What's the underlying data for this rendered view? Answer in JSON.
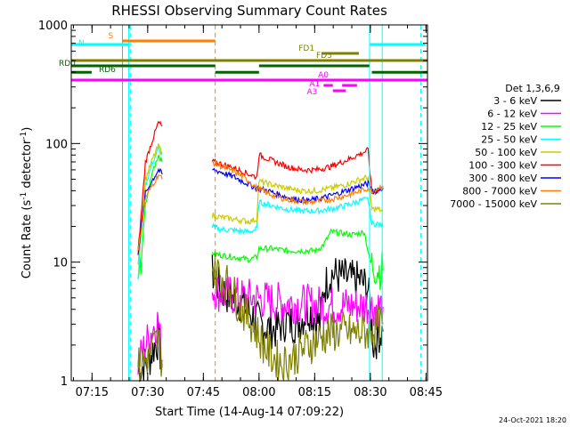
{
  "chart_data": {
    "type": "line",
    "title": "RHESSI Observing Summary Count Rates",
    "xlabel": "Start Time (14-Aug-14 07:09:22)",
    "ylabel": "Count Rate (s⁻¹ detector⁻¹)",
    "ylabel_main": "Count Rate (s",
    "ylabel_mid": " detector",
    "ylabel_end": ")",
    "ylabel_sup": "-1",
    "yscale": "log",
    "ylim": [
      1,
      1000
    ],
    "xlim_minutes": [
      0,
      96
    ],
    "x_ticks": [
      {
        "label": "07:15",
        "minute": 5.6
      },
      {
        "label": "07:30",
        "minute": 20.6
      },
      {
        "label": "07:45",
        "minute": 35.6
      },
      {
        "label": "08:00",
        "minute": 50.6
      },
      {
        "label": "08:15",
        "minute": 65.6
      },
      {
        "label": "08:30",
        "minute": 80.6
      },
      {
        "label": "08:45",
        "minute": 95.6
      }
    ],
    "y_ticks": [
      {
        "label": "1",
        "value": 1
      },
      {
        "label": "10",
        "value": 10
      },
      {
        "label": "100",
        "value": 100
      },
      {
        "label": "1000",
        "value": 1000
      }
    ],
    "legend_title": "Det 1,3,6,9",
    "series": [
      {
        "name": "3 - 6 keV",
        "color": "#000000",
        "values": [
          [
            18,
            1.2
          ],
          [
            21,
            1.5
          ],
          [
            22.5,
            2
          ],
          [
            23.5,
            2.2
          ],
          [
            24.5,
            1.3
          ],
          [
            38,
            8
          ],
          [
            40,
            6
          ],
          [
            43,
            5
          ],
          [
            46,
            4.5
          ],
          [
            49,
            3.5
          ],
          [
            51,
            3
          ],
          [
            53,
            2.8
          ],
          [
            55,
            2.7
          ],
          [
            58,
            3.2
          ],
          [
            61,
            3
          ],
          [
            64,
            4
          ],
          [
            67,
            3
          ],
          [
            68,
            6
          ],
          [
            70,
            8
          ],
          [
            73,
            7.5
          ],
          [
            76,
            7
          ],
          [
            78,
            7
          ],
          [
            80,
            6
          ],
          [
            81.5,
            2
          ],
          [
            83,
            2.5
          ],
          [
            84,
            2.6
          ]
        ]
      },
      {
        "name": "6 - 12 keV",
        "color": "#ff00ff",
        "values": [
          [
            18,
            1.4
          ],
          [
            20,
            2
          ],
          [
            22,
            2.8
          ],
          [
            23.5,
            3.2
          ],
          [
            24.5,
            1.5
          ],
          [
            38,
            6
          ],
          [
            40,
            5.5
          ],
          [
            43,
            5.2
          ],
          [
            46,
            5
          ],
          [
            49,
            5
          ],
          [
            52,
            4.8
          ],
          [
            56,
            4.6
          ],
          [
            60,
            4.5
          ],
          [
            64,
            4.4
          ],
          [
            68,
            4.3
          ],
          [
            72,
            4.3
          ],
          [
            76,
            4.3
          ],
          [
            80,
            4.3
          ],
          [
            82,
            4.2
          ],
          [
            84,
            4.2
          ]
        ]
      },
      {
        "name": "12 - 25 keV",
        "color": "#00ff00",
        "values": [
          [
            18,
            5
          ],
          [
            20,
            30
          ],
          [
            22,
            60
          ],
          [
            23.5,
            80
          ],
          [
            24.5,
            70
          ],
          [
            38,
            12
          ],
          [
            40,
            11.5
          ],
          [
            44,
            11
          ],
          [
            48,
            10.5
          ],
          [
            50,
            11
          ],
          [
            50.6,
            13
          ],
          [
            54,
            13
          ],
          [
            58,
            12.5
          ],
          [
            62,
            12.5
          ],
          [
            66,
            12.5
          ],
          [
            68,
            14
          ],
          [
            70,
            18
          ],
          [
            73,
            17.5
          ],
          [
            76,
            17
          ],
          [
            79,
            18
          ],
          [
            80.5,
            10
          ],
          [
            82,
            9
          ],
          [
            84,
            8.5
          ]
        ]
      },
      {
        "name": "25 - 50 keV",
        "color": "#00ffff",
        "values": [
          [
            18,
            8
          ],
          [
            20,
            45
          ],
          [
            22,
            70
          ],
          [
            23.5,
            90
          ],
          [
            24.5,
            80
          ],
          [
            38,
            20
          ],
          [
            40,
            19
          ],
          [
            44,
            18.5
          ],
          [
            48,
            18
          ],
          [
            50,
            19
          ],
          [
            50.6,
            32
          ],
          [
            54,
            30
          ],
          [
            58,
            28
          ],
          [
            62,
            27
          ],
          [
            66,
            27
          ],
          [
            70,
            28
          ],
          [
            74,
            30
          ],
          [
            78,
            33
          ],
          [
            80,
            34
          ],
          [
            81,
            21
          ],
          [
            82.5,
            21
          ],
          [
            84,
            20
          ]
        ]
      },
      {
        "name": "50 - 100 keV",
        "color": "#cccc00",
        "values": [
          [
            18,
            10
          ],
          [
            20,
            50
          ],
          [
            22,
            75
          ],
          [
            23.5,
            95
          ],
          [
            24.5,
            85
          ],
          [
            38,
            25
          ],
          [
            40,
            24
          ],
          [
            44,
            23
          ],
          [
            48,
            22
          ],
          [
            50,
            23
          ],
          [
            50.6,
            48
          ],
          [
            54,
            45
          ],
          [
            58,
            42
          ],
          [
            62,
            40
          ],
          [
            66,
            40
          ],
          [
            70,
            42
          ],
          [
            74,
            45
          ],
          [
            78,
            50
          ],
          [
            80,
            52
          ],
          [
            81,
            28
          ],
          [
            82.5,
            28
          ],
          [
            84,
            27
          ]
        ]
      },
      {
        "name": "100 - 300 keV",
        "color": "#ff0000",
        "values": [
          [
            18,
            12
          ],
          [
            20,
            70
          ],
          [
            22,
            110
          ],
          [
            23.5,
            150
          ],
          [
            24.5,
            140
          ],
          [
            38,
            70
          ],
          [
            40,
            68
          ],
          [
            44,
            62
          ],
          [
            48,
            55
          ],
          [
            50,
            52
          ],
          [
            50.6,
            80
          ],
          [
            54,
            72
          ],
          [
            58,
            64
          ],
          [
            62,
            60
          ],
          [
            66,
            60
          ],
          [
            70,
            64
          ],
          [
            74,
            72
          ],
          [
            78,
            82
          ],
          [
            80,
            88
          ],
          [
            81,
            38
          ],
          [
            82.5,
            40
          ],
          [
            84,
            42
          ]
        ]
      },
      {
        "name": "300 - 800 keV",
        "color": "#0000ff",
        "values": [
          [
            18,
            12
          ],
          [
            20,
            38
          ],
          [
            22,
            50
          ],
          [
            23.5,
            60
          ],
          [
            24.5,
            55
          ],
          [
            38,
            60
          ],
          [
            40,
            58
          ],
          [
            44,
            52
          ],
          [
            48,
            45
          ],
          [
            50,
            42
          ],
          [
            53,
            40
          ],
          [
            56,
            37
          ],
          [
            60,
            34
          ],
          [
            64,
            33
          ],
          [
            68,
            35
          ],
          [
            72,
            38
          ],
          [
            76,
            42
          ],
          [
            80,
            46
          ],
          [
            81,
            40
          ],
          [
            82.5,
            41
          ],
          [
            84,
            42
          ]
        ]
      },
      {
        "name": "800 - 7000 keV",
        "color": "#ff8000",
        "values": [
          [
            18,
            12
          ],
          [
            20,
            35
          ],
          [
            22,
            45
          ],
          [
            23.5,
            55
          ],
          [
            24.5,
            50
          ],
          [
            38,
            70
          ],
          [
            40,
            65
          ],
          [
            44,
            58
          ],
          [
            48,
            48
          ],
          [
            50,
            42
          ],
          [
            53,
            38
          ],
          [
            56,
            35
          ],
          [
            60,
            33
          ],
          [
            64,
            32
          ],
          [
            68,
            33
          ],
          [
            72,
            35
          ],
          [
            76,
            38
          ],
          [
            80,
            42
          ],
          [
            81,
            40
          ],
          [
            82.5,
            42
          ],
          [
            84,
            44
          ]
        ]
      },
      {
        "name": "7000 - 15000 keV",
        "color": "#808000",
        "values": [
          [
            18,
            1.3
          ],
          [
            21,
            1.6
          ],
          [
            22.5,
            2
          ],
          [
            23.5,
            2.3
          ],
          [
            24.5,
            1.4
          ],
          [
            38,
            9
          ],
          [
            40,
            8
          ],
          [
            43,
            6
          ],
          [
            46,
            4
          ],
          [
            49,
            3
          ],
          [
            51,
            2.2
          ],
          [
            54,
            1.6
          ],
          [
            57,
            1.4
          ],
          [
            60,
            1.6
          ],
          [
            64,
            2
          ],
          [
            68,
            2.4
          ],
          [
            72,
            2.6
          ],
          [
            76,
            2.5
          ],
          [
            80,
            2.6
          ],
          [
            82,
            2.8
          ],
          [
            84,
            3
          ]
        ]
      }
    ],
    "vlines": [
      {
        "minute": 0,
        "color": "#00ffff",
        "style": "solid"
      },
      {
        "minute": 13.8,
        "color": "#ff8000",
        "style": "solid"
      },
      {
        "minute": 15.5,
        "color": "#00ffff",
        "style": "solid"
      },
      {
        "minute": 16,
        "color": "#00ffff",
        "style": "dashed"
      },
      {
        "minute": 38.8,
        "color": "#ff8000",
        "style": "dashed"
      },
      {
        "minute": 80.4,
        "color": "#00ffff",
        "style": "solid"
      },
      {
        "minute": 83.8,
        "color": "#00ffff",
        "style": "solid"
      },
      {
        "minute": 94.2,
        "color": "#00ffff",
        "style": "dashed"
      }
    ],
    "flag_bars": [
      {
        "label": "S",
        "color": "#ff8000",
        "y_frac": 0.955,
        "segments": [
          [
            13.8,
            38.8
          ]
        ]
      },
      {
        "label": "N",
        "color": "#00ffff",
        "y_frac": 0.945,
        "segments": [
          [
            0,
            15.5
          ],
          [
            80.4,
            95.4
          ]
        ]
      },
      {
        "label": "FD1",
        "color": "#808000",
        "y_frac": 0.92,
        "segments": [
          [
            67.5,
            77.5
          ]
        ]
      },
      {
        "label": "FD3",
        "color": "#808000",
        "y_frac": 0.9,
        "segments": [
          [
            0,
            96
          ]
        ]
      },
      {
        "label": "RD0",
        "color": "#006400",
        "y_frac": 0.885,
        "segments": [
          [
            0,
            38.8
          ],
          [
            50.6,
            80.3
          ]
        ]
      },
      {
        "label": "RD6",
        "color": "#006400",
        "y_frac": 0.867,
        "segments": [
          [
            0,
            5.5
          ],
          [
            38.8,
            50.6
          ],
          [
            81,
            96
          ]
        ]
      },
      {
        "label": "A0",
        "color": "#ff00ff",
        "y_frac": 0.845,
        "segments": [
          [
            0,
            96
          ]
        ]
      },
      {
        "label": "A1",
        "color": "#ff00ff",
        "y_frac": 0.83,
        "segments": [
          [
            68,
            70.5
          ],
          [
            73,
            77
          ]
        ]
      },
      {
        "label": "A3",
        "color": "#ff00ff",
        "y_frac": 0.815,
        "segments": [
          [
            70.5,
            74
          ]
        ]
      }
    ],
    "timestamp": "24-Oct-2021 18:20"
  }
}
